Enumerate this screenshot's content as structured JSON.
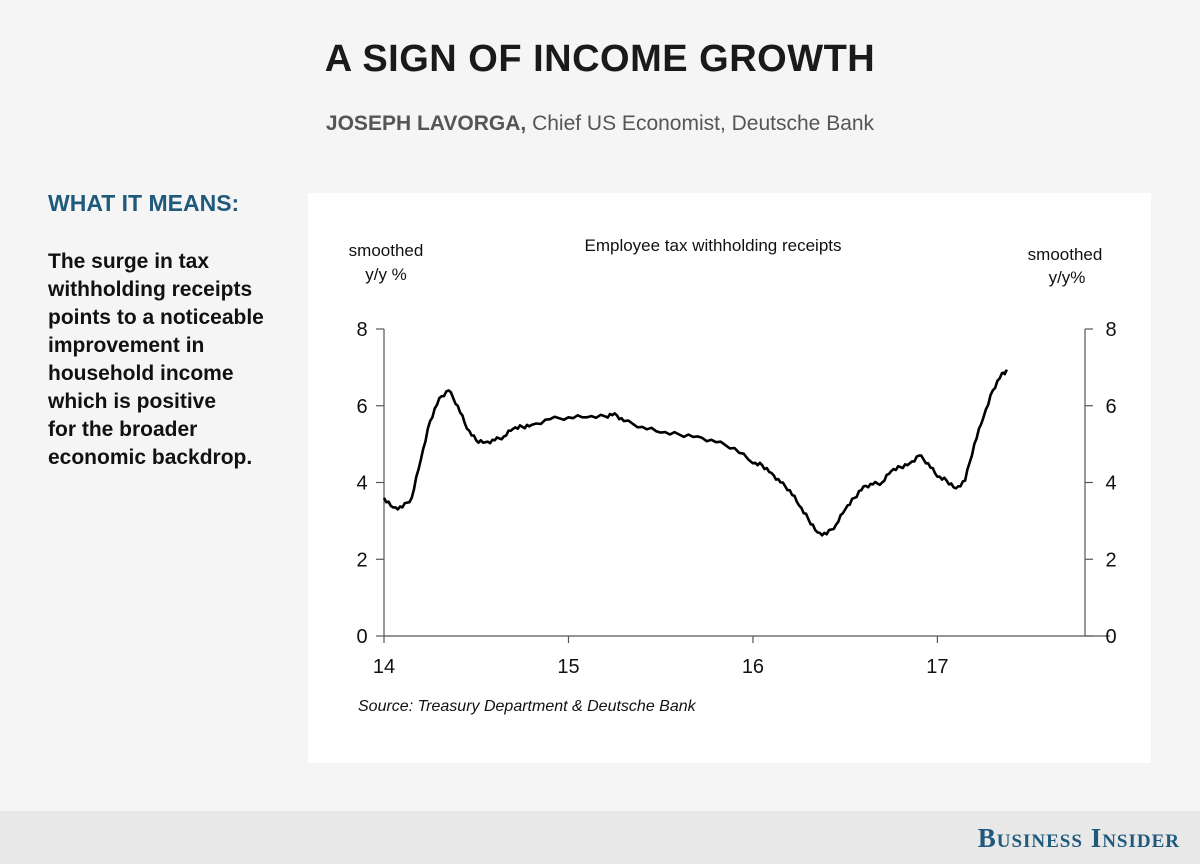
{
  "header": {
    "title": "A SIGN OF INCOME GROWTH",
    "author": "JOSEPH LAVORGA,",
    "author_role": " Chief US Economist, Deutsche Bank"
  },
  "sidebar": {
    "heading": "WHAT IT MEANS:",
    "lines": [
      "The surge in tax",
      "withholding receipts",
      "points to a noticeable",
      "improvement in",
      "household income",
      "which is positive",
      "for the broader",
      "economic backdrop."
    ]
  },
  "footer": {
    "brand": "Business Insider"
  },
  "chart_data": {
    "type": "line",
    "title": "Employee tax withholding receipts",
    "ylabel_left": [
      "smoothed",
      "y/y %"
    ],
    "ylabel_right": [
      "smoothed",
      "y/y%"
    ],
    "source": "Source: Treasury Department & Deutsche Bank",
    "xlim": [
      14,
      17.8
    ],
    "ylim": [
      0,
      8
    ],
    "x_ticks": [
      14,
      15,
      16,
      17
    ],
    "y_ticks": [
      0,
      2,
      4,
      6,
      8
    ],
    "grid": false,
    "series": [
      {
        "x": [
          14.0,
          14.05,
          14.1,
          14.15,
          14.2,
          14.25,
          14.3,
          14.35,
          14.4,
          14.45,
          14.5,
          14.55,
          14.6,
          14.65,
          14.7,
          14.75,
          14.8,
          14.9,
          15.0,
          15.1,
          15.2,
          15.25,
          15.3,
          15.4,
          15.5,
          15.6,
          15.7,
          15.8,
          15.9,
          16.0,
          16.05,
          16.1,
          16.15,
          16.2,
          16.25,
          16.3,
          16.35,
          16.4,
          16.45,
          16.5,
          16.55,
          16.6,
          16.65,
          16.7,
          16.75,
          16.8,
          16.85,
          16.9,
          16.95,
          17.0,
          17.05,
          17.1,
          17.15,
          17.2,
          17.25,
          17.3,
          17.35,
          17.38
        ],
        "y": [
          3.6,
          3.35,
          3.35,
          3.6,
          4.6,
          5.6,
          6.2,
          6.4,
          6.0,
          5.4,
          5.1,
          5.05,
          5.1,
          5.2,
          5.4,
          5.45,
          5.5,
          5.65,
          5.7,
          5.7,
          5.72,
          5.8,
          5.6,
          5.45,
          5.3,
          5.25,
          5.2,
          5.05,
          4.9,
          4.5,
          4.45,
          4.25,
          4.0,
          3.8,
          3.4,
          3.05,
          2.7,
          2.65,
          2.9,
          3.3,
          3.6,
          3.9,
          3.95,
          4.0,
          4.3,
          4.4,
          4.5,
          4.7,
          4.5,
          4.15,
          4.05,
          3.85,
          4.05,
          5.0,
          5.7,
          6.4,
          6.85,
          6.9
        ]
      }
    ]
  }
}
